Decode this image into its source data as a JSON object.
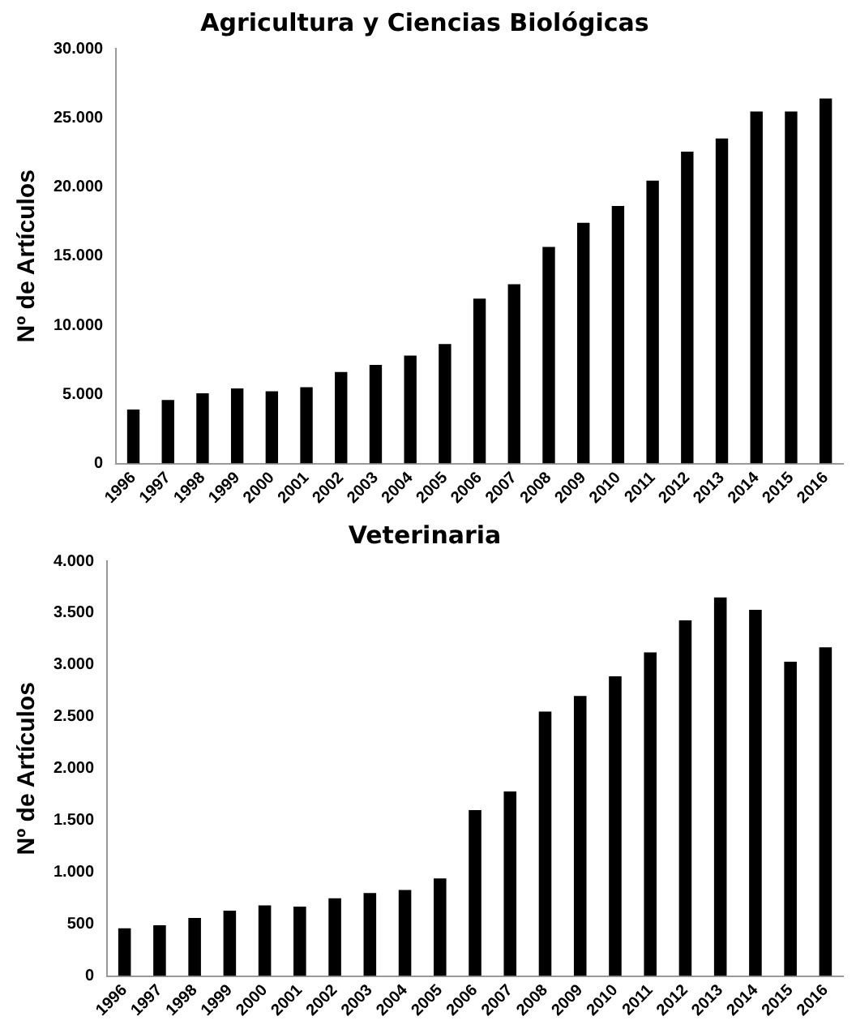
{
  "chart_data": [
    {
      "type": "bar",
      "title": "Agricultura y Ciencias Biológicas",
      "ylabel": "Nº de Artículos",
      "categories": [
        "1996",
        "1997",
        "1998",
        "1999",
        "2000",
        "2001",
        "2002",
        "2003",
        "2004",
        "2005",
        "2006",
        "2007",
        "2008",
        "2009",
        "2010",
        "2011",
        "2012",
        "2013",
        "2014",
        "2015",
        "2016"
      ],
      "values": [
        3900,
        4600,
        5070,
        5430,
        5230,
        5510,
        6620,
        7130,
        7810,
        8640,
        11930,
        12960,
        15660,
        17400,
        18630,
        20450,
        22550,
        23500,
        25450,
        25450,
        26400
      ],
      "color": "#000000",
      "ylim": [
        0,
        30000
      ],
      "yticks": [
        {
          "value": 0,
          "label": "0"
        },
        {
          "value": 5000,
          "label": "5.000"
        },
        {
          "value": 10000,
          "label": "10.000"
        },
        {
          "value": 15000,
          "label": "15.000"
        },
        {
          "value": 20000,
          "label": "20.000"
        },
        {
          "value": 25000,
          "label": "25.000"
        },
        {
          "value": 30000,
          "label": "30.000"
        }
      ],
      "grid": false,
      "legend": false
    },
    {
      "type": "bar",
      "title": "Veterinaria",
      "ylabel": "Nº de Artículos",
      "categories": [
        "1996",
        "1997",
        "1998",
        "1999",
        "2000",
        "2001",
        "2002",
        "2003",
        "2004",
        "2005",
        "2006",
        "2007",
        "2008",
        "2009",
        "2010",
        "2011",
        "2012",
        "2013",
        "2014",
        "2015",
        "2016"
      ],
      "values": [
        460,
        490,
        560,
        630,
        680,
        670,
        750,
        800,
        830,
        940,
        1600,
        1780,
        2550,
        2700,
        2890,
        3120,
        3430,
        3650,
        3530,
        3030,
        3170
      ],
      "color": "#000000",
      "ylim": [
        0,
        4000
      ],
      "yticks": [
        {
          "value": 0,
          "label": "0"
        },
        {
          "value": 500,
          "label": "500"
        },
        {
          "value": 1000,
          "label": "1.000"
        },
        {
          "value": 1500,
          "label": "1.500"
        },
        {
          "value": 2000,
          "label": "2.000"
        },
        {
          "value": 2500,
          "label": "2.500"
        },
        {
          "value": 3000,
          "label": "3.000"
        },
        {
          "value": 3500,
          "label": "3.500"
        },
        {
          "value": 4000,
          "label": "4.000"
        }
      ],
      "grid": false,
      "legend": false
    }
  ]
}
